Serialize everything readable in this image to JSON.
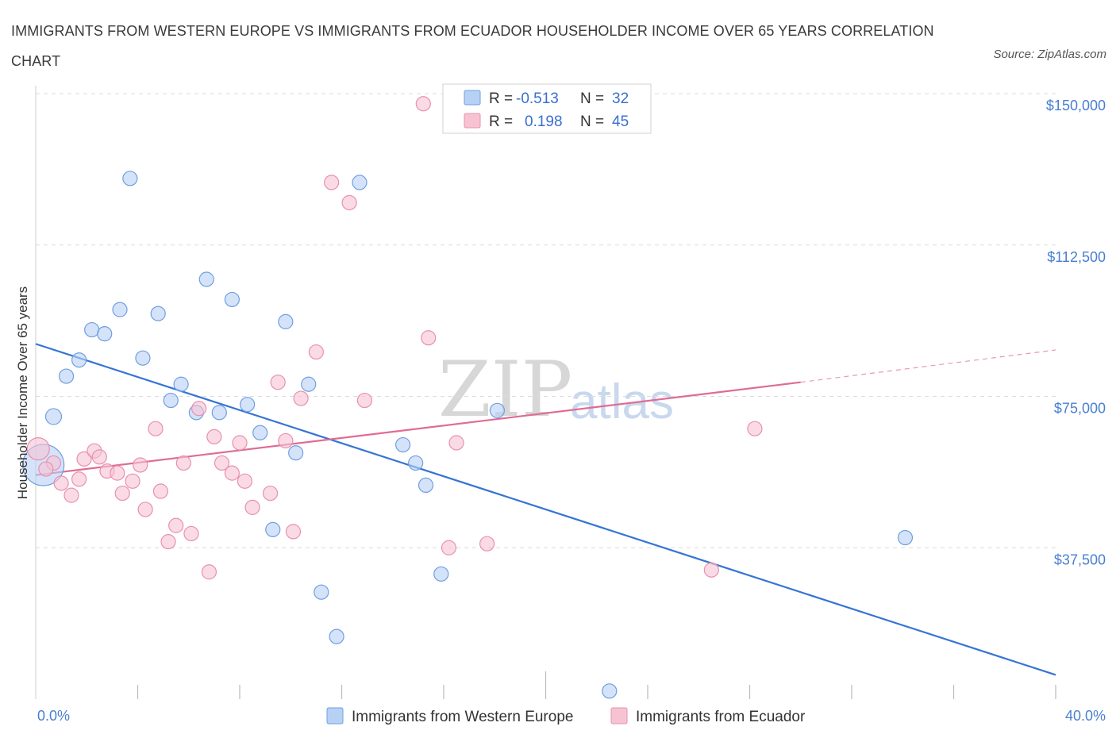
{
  "title": "IMMIGRANTS FROM WESTERN EUROPE VS IMMIGRANTS FROM ECUADOR HOUSEHOLDER INCOME OVER 65 YEARS CORRELATION CHART",
  "source": "Source: ZipAtlas.com",
  "watermark": {
    "zip": "ZIP",
    "atlas": "atlas"
  },
  "colors": {
    "blue_fill": "#b7d1f5",
    "blue_stroke": "#6f9fe0",
    "blue_line": "#3574d4",
    "pink_fill": "#f7c3d3",
    "pink_stroke": "#e890ae",
    "pink_line": "#e06b94",
    "grid": "#dcdcdc",
    "axis_text": "#4a7fd0"
  },
  "legend": {
    "rows": [
      {
        "r_label": "R =",
        "r_value": "-0.513",
        "n_label": "N =",
        "n_value": "32"
      },
      {
        "r_label": "R =",
        "r_value": "0.198",
        "n_label": "N =",
        "n_value": "45"
      }
    ]
  },
  "chart_data": {
    "type": "scatter",
    "title": "IMMIGRANTS FROM WESTERN EUROPE VS IMMIGRANTS FROM ECUADOR HOUSEHOLDER INCOME OVER 65 YEARS CORRELATION CHART",
    "xlabel": "",
    "ylabel": "Householder Income Over 65 years",
    "xlim": [
      0,
      40
    ],
    "ylim": [
      0,
      150000
    ],
    "x_tick_labels": [
      "0.0%",
      "40.0%"
    ],
    "y_ticks": [
      37500,
      75000,
      112500,
      150000
    ],
    "y_tick_labels": [
      "$37,500",
      "$75,000",
      "$112,500",
      "$150,000"
    ],
    "series": [
      {
        "name": "Immigrants from Western Europe",
        "color": "#6f9fe0",
        "points": [
          [
            0.3,
            58000,
            26
          ],
          [
            0.7,
            70000,
            10
          ],
          [
            1.2,
            80000,
            9
          ],
          [
            1.7,
            84000,
            9
          ],
          [
            2.2,
            91500,
            9
          ],
          [
            2.7,
            90500,
            9
          ],
          [
            3.3,
            96500,
            9
          ],
          [
            3.7,
            129000,
            9
          ],
          [
            4.2,
            84500,
            9
          ],
          [
            4.8,
            95500,
            9
          ],
          [
            5.3,
            74000,
            9
          ],
          [
            5.7,
            78000,
            9
          ],
          [
            6.3,
            71000,
            9
          ],
          [
            6.7,
            104000,
            9
          ],
          [
            7.2,
            71000,
            9
          ],
          [
            7.7,
            99000,
            9
          ],
          [
            8.3,
            73000,
            9
          ],
          [
            8.8,
            66000,
            9
          ],
          [
            9.3,
            42000,
            9
          ],
          [
            9.8,
            93500,
            9
          ],
          [
            10.2,
            61000,
            9
          ],
          [
            10.7,
            78000,
            9
          ],
          [
            11.2,
            26500,
            9
          ],
          [
            11.8,
            15500,
            9
          ],
          [
            12.7,
            128000,
            9
          ],
          [
            14.4,
            63000,
            9
          ],
          [
            14.9,
            58500,
            9
          ],
          [
            15.3,
            53000,
            9
          ],
          [
            15.9,
            31000,
            9
          ],
          [
            18.1,
            71500,
            9
          ],
          [
            22.5,
            2000,
            9
          ],
          [
            34.1,
            40000,
            9
          ]
        ],
        "trend": {
          "x": [
            0,
            40
          ],
          "y": [
            88000,
            6000
          ],
          "style": "solid"
        }
      },
      {
        "name": "Immigrants from Ecuador",
        "color": "#e890ae",
        "points": [
          [
            0.1,
            62000,
            14
          ],
          [
            0.7,
            58500,
            9
          ],
          [
            1.0,
            53500,
            9
          ],
          [
            1.4,
            50500,
            9
          ],
          [
            1.7,
            54500,
            9
          ],
          [
            1.9,
            59500,
            9
          ],
          [
            2.3,
            61500,
            9
          ],
          [
            2.5,
            60000,
            9
          ],
          [
            2.8,
            56500,
            9
          ],
          [
            3.2,
            56000,
            9
          ],
          [
            3.4,
            51000,
            9
          ],
          [
            3.8,
            54000,
            9
          ],
          [
            4.1,
            58000,
            9
          ],
          [
            4.3,
            47000,
            9
          ],
          [
            4.7,
            67000,
            9
          ],
          [
            4.9,
            51500,
            9
          ],
          [
            5.2,
            39000,
            9
          ],
          [
            5.5,
            43000,
            9
          ],
          [
            5.8,
            58500,
            9
          ],
          [
            6.1,
            41000,
            9
          ],
          [
            6.4,
            72000,
            9
          ],
          [
            6.8,
            31500,
            9
          ],
          [
            7.0,
            65000,
            9
          ],
          [
            7.3,
            58500,
            9
          ],
          [
            7.7,
            56000,
            9
          ],
          [
            8.0,
            63500,
            9
          ],
          [
            8.2,
            54000,
            9
          ],
          [
            8.5,
            47500,
            9
          ],
          [
            9.2,
            51000,
            9
          ],
          [
            9.5,
            78500,
            9
          ],
          [
            9.8,
            64000,
            9
          ],
          [
            10.1,
            41500,
            9
          ],
          [
            10.4,
            74500,
            9
          ],
          [
            11.0,
            86000,
            9
          ],
          [
            11.6,
            128000,
            9
          ],
          [
            12.3,
            123000,
            9
          ],
          [
            12.9,
            74000,
            9
          ],
          [
            15.2,
            147500,
            9
          ],
          [
            15.4,
            89500,
            9
          ],
          [
            16.2,
            37500,
            9
          ],
          [
            16.5,
            63500,
            9
          ],
          [
            17.7,
            38500,
            9
          ],
          [
            26.5,
            32000,
            9
          ],
          [
            28.2,
            67000,
            9
          ],
          [
            0.4,
            57000,
            9
          ]
        ],
        "trend": {
          "x": [
            0,
            30
          ],
          "y": [
            55500,
            78500
          ],
          "style": "solid",
          "dashed_ext": {
            "x": [
              30,
              40
            ],
            "y": [
              78500,
              86500
            ]
          }
        }
      }
    ]
  }
}
